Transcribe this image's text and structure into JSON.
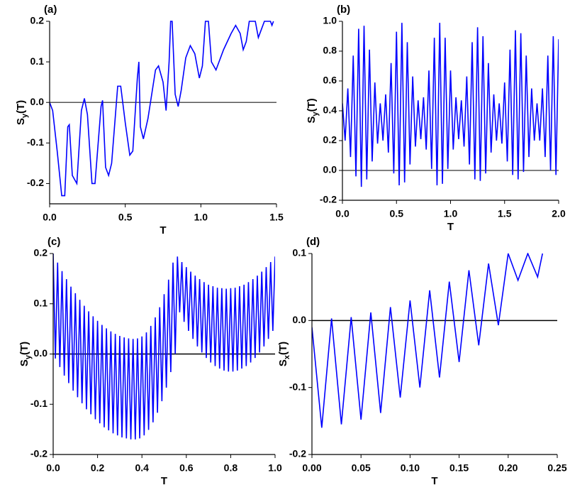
{
  "chart_data": [
    {
      "type": "line",
      "panel_label": "(a)",
      "xlabel": "T",
      "ylabel": {
        "main": "S",
        "sub": "y",
        "tail": "(T)"
      },
      "xlim": [
        0,
        1.5
      ],
      "ylim": [
        -0.25,
        0.2
      ],
      "xticks": [
        {
          "value": 0,
          "label": "0.0"
        },
        0.5,
        {
          "value": 1,
          "label": "1.0"
        },
        1.5
      ],
      "yticks": [
        -0.2,
        -0.1,
        {
          "value": 0,
          "label": "0.0"
        },
        0.1,
        0.2
      ],
      "zero_line": {
        "value": 0,
        "color": "#555555"
      },
      "x": [
        0,
        0.02,
        0.05,
        0.08,
        0.1,
        0.12,
        0.13,
        0.15,
        0.18,
        0.21,
        0.23,
        0.25,
        0.28,
        0.3,
        0.34,
        0.35,
        0.37,
        0.39,
        0.41,
        0.45,
        0.47,
        0.5,
        0.53,
        0.55,
        0.58,
        0.59,
        0.6,
        0.62,
        0.65,
        0.7,
        0.72,
        0.75,
        0.77,
        0.79,
        0.8,
        0.81,
        0.83,
        0.85,
        0.87,
        0.9,
        0.93,
        0.96,
        0.99,
        1.01,
        1.03,
        1.05,
        1.07,
        1.1,
        1.15,
        1.2,
        1.23,
        1.26,
        1.28,
        1.3,
        1.32,
        1.36,
        1.38,
        1.4,
        1.42,
        1.46,
        1.47,
        1.48
      ],
      "series": [
        {
          "color": "#0000ff",
          "values": [
            0,
            -0.02,
            -0.12,
            -0.23,
            -0.23,
            -0.06,
            -0.055,
            -0.18,
            -0.2,
            -0.02,
            0.01,
            -0.03,
            -0.2,
            -0.2,
            -0.01,
            0.005,
            -0.16,
            -0.18,
            -0.15,
            0.04,
            0.04,
            -0.05,
            -0.13,
            -0.12,
            0.06,
            0.1,
            -0.06,
            -0.09,
            -0.04,
            0.08,
            0.09,
            0.05,
            -0.02,
            0.1,
            0.2,
            0.2,
            0.02,
            -0.01,
            0.03,
            0.11,
            0.14,
            0.12,
            0.06,
            0.09,
            0.2,
            0.2,
            0.1,
            0.08,
            0.13,
            0.17,
            0.19,
            0.17,
            0.13,
            0.15,
            0.2,
            0.2,
            0.16,
            0.18,
            0.2,
            0.2,
            0.19,
            0.2
          ]
        }
      ]
    },
    {
      "type": "line",
      "panel_label": "(b)",
      "xlabel": "T",
      "ylabel": {
        "main": "S",
        "sub": "y",
        "tail": "(T)"
      },
      "xlim": [
        0,
        2
      ],
      "ylim": [
        -0.2,
        1
      ],
      "xticks": [
        {
          "value": 0,
          "label": "0.0"
        },
        0.5,
        {
          "value": 1,
          "label": "1.0"
        },
        1.5,
        {
          "value": 2,
          "label": "2.0"
        }
      ],
      "yticks": [
        -0.2,
        {
          "value": 0,
          "label": "0.0"
        },
        0.2,
        0.4,
        0.6,
        0.8,
        {
          "value": 1,
          "label": "1.0"
        }
      ],
      "zero_line": {
        "value": 0,
        "color": "#555555"
      },
      "x": [
        0,
        0.025,
        0.05,
        0.075,
        0.1,
        0.125,
        0.15,
        0.175,
        0.2,
        0.225,
        0.25,
        0.275,
        0.3,
        0.325,
        0.35,
        0.375,
        0.4,
        0.425,
        0.45,
        0.475,
        0.5,
        0.525,
        0.55,
        0.575,
        0.6,
        0.625,
        0.65,
        0.675,
        0.7,
        0.725,
        0.75,
        0.775,
        0.8,
        0.825,
        0.85,
        0.875,
        0.9,
        0.925,
        0.95,
        0.975,
        1,
        1.025,
        1.05,
        1.075,
        1.1,
        1.125,
        1.15,
        1.175,
        1.2,
        1.225,
        1.25,
        1.275,
        1.3,
        1.325,
        1.35,
        1.375,
        1.4,
        1.425,
        1.45,
        1.475,
        1.5,
        1.525,
        1.55,
        1.575,
        1.6,
        1.625,
        1.65,
        1.675,
        1.7,
        1.725,
        1.75,
        1.775,
        1.8,
        1.825,
        1.85,
        1.875,
        1.9,
        1.925,
        1.95,
        1.975,
        2
      ],
      "series": [
        {
          "color": "#0000ff",
          "values": [
            0.45,
            0.2,
            0.55,
            0.09,
            0.77,
            -0.04,
            0.95,
            -0.11,
            0.97,
            -0.06,
            0.81,
            0.06,
            0.59,
            0.18,
            0.45,
            0.2,
            0.51,
            0.12,
            0.72,
            -0.02,
            0.93,
            -0.1,
            0.99,
            -0.08,
            0.86,
            0.04,
            0.63,
            0.16,
            0.47,
            0.21,
            0.49,
            0.14,
            0.67,
            0.01,
            0.89,
            -0.1,
            0.99,
            -0.09,
            0.89,
            0.01,
            0.67,
            0.14,
            0.49,
            0.21,
            0.47,
            0.16,
            0.63,
            0.04,
            0.86,
            -0.06,
            0.96,
            -0.07,
            0.9,
            -0.02,
            0.72,
            0.12,
            0.51,
            0.2,
            0.45,
            0.18,
            0.59,
            0.06,
            0.81,
            -0.03,
            0.94,
            -0.06,
            0.92,
            -0.01,
            0.77,
            0.09,
            0.55,
            0.2,
            0.45,
            0.2,
            0.55,
            0.09,
            0.77,
            0,
            0.9,
            -0.03,
            0.88
          ]
        }
      ]
    },
    {
      "type": "line",
      "panel_label": "(c)",
      "xlabel": "T",
      "ylabel": {
        "main": "S",
        "sub": "y",
        "tail": "(T)"
      },
      "xlim": [
        0,
        1
      ],
      "ylim": [
        -0.2,
        0.2
      ],
      "xticks": [
        {
          "value": 0,
          "label": "0.0"
        },
        0.2,
        0.4,
        0.6,
        0.8,
        {
          "value": 1,
          "label": "1.0"
        }
      ],
      "yticks": [
        -0.2,
        -0.1,
        {
          "value": 0,
          "label": "0.0"
        },
        0.1,
        0.2
      ],
      "zero_line": {
        "value": 0,
        "color": "#000000"
      },
      "x": [
        0,
        0.01,
        0.02,
        0.03,
        0.04,
        0.05,
        0.06,
        0.07,
        0.08,
        0.09,
        0.1,
        0.11,
        0.12,
        0.13,
        0.14,
        0.15,
        0.16,
        0.17,
        0.18,
        0.19,
        0.2,
        0.21,
        0.22,
        0.23,
        0.24,
        0.25,
        0.26,
        0.27,
        0.28,
        0.29,
        0.3,
        0.31,
        0.32,
        0.33,
        0.34,
        0.35,
        0.36,
        0.37,
        0.38,
        0.39,
        0.4,
        0.41,
        0.42,
        0.43,
        0.44,
        0.45,
        0.46,
        0.47,
        0.48,
        0.49,
        0.5,
        0.51,
        0.52,
        0.53,
        0.54,
        0.55,
        0.56,
        0.57,
        0.58,
        0.59,
        0.6,
        0.61,
        0.62,
        0.63,
        0.64,
        0.65,
        0.66,
        0.67,
        0.68,
        0.69,
        0.7,
        0.71,
        0.72,
        0.73,
        0.74,
        0.75,
        0.76,
        0.77,
        0.78,
        0.79,
        0.8,
        0.81,
        0.82,
        0.83,
        0.84,
        0.85,
        0.86,
        0.87,
        0.88,
        0.89,
        0.9,
        0.91,
        0.92,
        0.93,
        0.94,
        0.95,
        0.96,
        0.97,
        0.98,
        0.99,
        1
      ],
      "series": [
        {
          "color": "#0000ff",
          "values": [
            0.2,
            -0.009,
            0.182,
            -0.026,
            0.165,
            -0.043,
            0.149,
            -0.058,
            0.134,
            -0.073,
            0.121,
            -0.086,
            0.108,
            -0.098,
            0.096,
            -0.11,
            0.085,
            -0.12,
            0.075,
            -0.13,
            0.066,
            -0.138,
            0.058,
            -0.146,
            0.051,
            -0.152,
            0.045,
            -0.158,
            0.04,
            -0.162,
            0.036,
            -0.166,
            0.033,
            -0.168,
            0.031,
            -0.17,
            0.03,
            -0.17,
            0.031,
            -0.168,
            0.035,
            -0.162,
            0.043,
            -0.151,
            0.056,
            -0.136,
            0.073,
            -0.117,
            0.093,
            -0.094,
            0.119,
            -0.067,
            0.148,
            -0.036,
            0.182,
            0,
            0.194,
            0.083,
            0.183,
            0.064,
            0.173,
            0.046,
            0.164,
            0.03,
            0.156,
            0.015,
            0.149,
            0.003,
            0.143,
            -0.008,
            0.138,
            -0.017,
            0.135,
            -0.024,
            0.132,
            -0.029,
            0.131,
            -0.033,
            0.13,
            -0.035,
            0.131,
            -0.035,
            0.132,
            -0.033,
            0.135,
            -0.029,
            0.138,
            -0.024,
            0.143,
            -0.017,
            0.149,
            -0.008,
            0.156,
            0.003,
            0.164,
            0.015,
            0.173,
            0.03,
            0.183,
            0.046,
            0.194
          ]
        }
      ]
    },
    {
      "type": "line",
      "panel_label": "(d)",
      "xlabel": "T",
      "ylabel": {
        "main": "S",
        "sub": "x",
        "tail": "(T)"
      },
      "xlim": [
        0,
        0.25
      ],
      "ylim": [
        -0.2,
        0.1
      ],
      "xticks": [
        {
          "value": 0,
          "label": "0.00"
        },
        0.05,
        {
          "value": 0.1,
          "label": "0.10"
        },
        0.15,
        {
          "value": 0.2,
          "label": "0.20"
        },
        0.25
      ],
      "yticks": [
        -0.2,
        -0.1,
        {
          "value": 0,
          "label": "0.0"
        },
        0.1
      ],
      "zero_line": {
        "value": 0,
        "color": "#000000"
      },
      "x": [
        0,
        0.01,
        0.02,
        0.03,
        0.04,
        0.05,
        0.06,
        0.07,
        0.08,
        0.09,
        0.1,
        0.11,
        0.12,
        0.13,
        0.14,
        0.15,
        0.16,
        0.17,
        0.18,
        0.19,
        0.2,
        0.21,
        0.22,
        0.23,
        0.235
      ],
      "series": [
        {
          "color": "#0000ff",
          "values": [
            -0.01,
            -0.16,
            0.003,
            -0.155,
            0.005,
            -0.148,
            0.012,
            -0.138,
            0.02,
            -0.115,
            0.03,
            -0.1,
            0.045,
            -0.085,
            0.058,
            -0.062,
            0.075,
            -0.037,
            0.085,
            -0.007,
            0.1,
            0.06,
            0.1,
            0.065,
            0.1
          ]
        }
      ]
    }
  ]
}
